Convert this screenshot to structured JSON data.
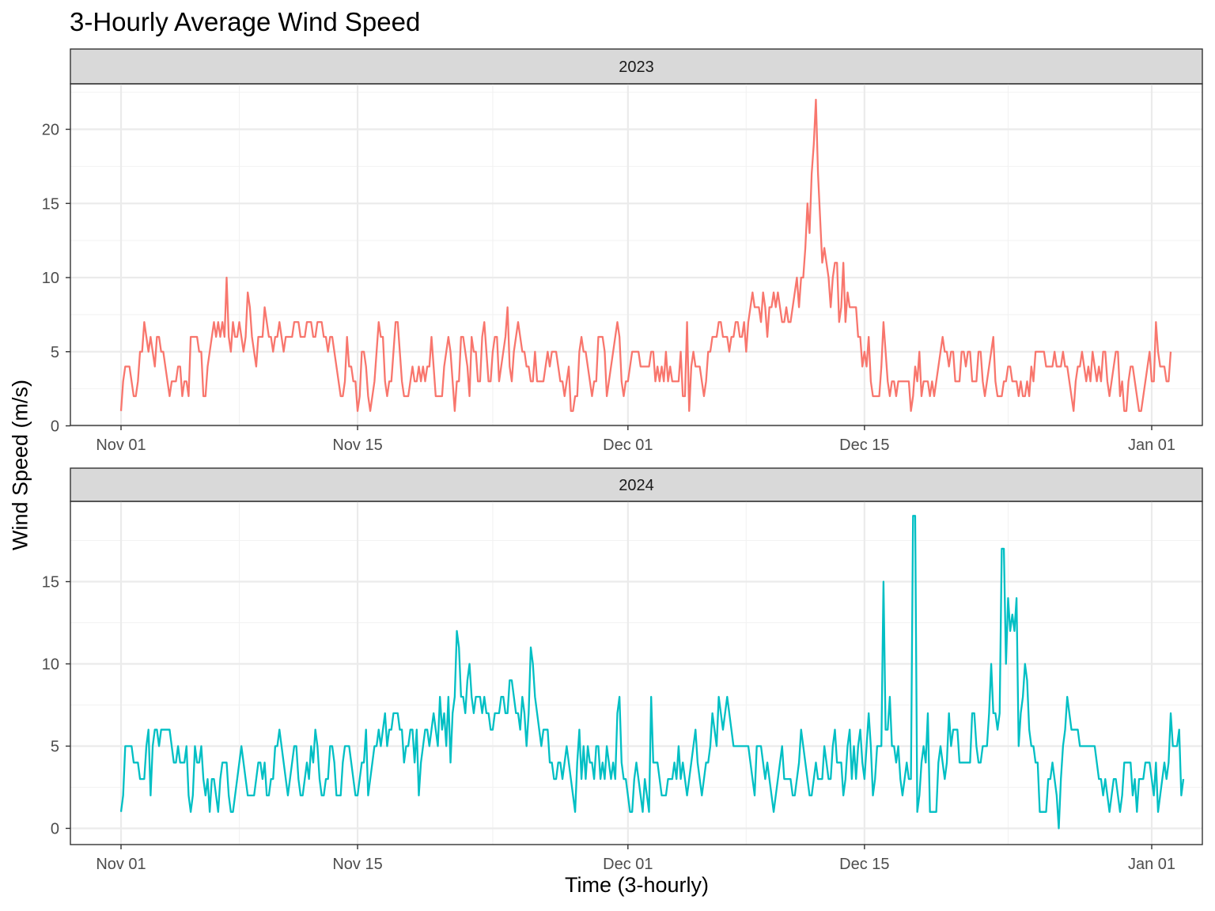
{
  "chart_data": {
    "type": "line",
    "title": "3-Hourly Average Wind Speed",
    "xlabel": "Time (3-hourly)",
    "ylabel": "Wind Speed (m/s)",
    "x_tick_labels": [
      "Nov 01",
      "Nov 15",
      "Dec 01",
      "Dec 15",
      "Jan 01"
    ],
    "x_tick_days": [
      0,
      14,
      30,
      44,
      61
    ],
    "grid": true,
    "legend": "none",
    "panels": [
      {
        "facet": "2023",
        "color": "#F8766D",
        "ylim": [
          0,
          23
        ],
        "y_ticks": [
          0,
          5,
          10,
          15,
          20
        ],
        "series": [
          {
            "x_start": "2023-11-01",
            "step_hours": 3,
            "values": [
              1,
              3,
              4,
              4,
              4,
              3,
              2,
              2,
              3,
              5,
              5,
              7,
              6,
              5,
              6,
              5,
              4,
              6,
              6,
              5,
              5,
              4,
              3,
              2,
              3,
              3,
              3,
              4,
              4,
              2,
              3,
              3,
              2,
              6,
              6,
              6,
              6,
              5,
              5,
              2,
              2,
              4,
              5,
              6,
              7,
              6,
              7,
              6,
              7,
              6,
              10,
              6,
              5,
              7,
              6,
              6,
              7,
              6,
              5,
              6,
              9,
              8,
              6,
              5,
              4,
              6,
              6,
              6,
              8,
              7,
              6,
              6,
              5,
              6,
              6,
              7,
              6,
              5,
              6,
              6,
              6,
              6,
              7,
              7,
              7,
              6,
              6,
              6,
              7,
              7,
              7,
              6,
              6,
              7,
              7,
              7,
              6,
              6,
              5,
              6,
              6,
              5,
              4,
              3,
              2,
              2,
              3,
              6,
              4,
              4,
              3,
              3,
              1,
              2,
              5,
              5,
              4,
              2,
              1,
              2,
              3,
              5,
              7,
              6,
              6,
              3,
              2,
              3,
              3,
              5,
              7,
              7,
              5,
              3,
              2,
              2,
              2,
              3,
              4,
              3,
              3,
              4,
              3,
              4,
              3,
              4,
              4,
              6,
              4,
              2,
              2,
              2,
              2,
              4,
              5,
              6,
              5,
              3,
              1,
              3,
              3,
              6,
              6,
              5,
              4,
              2,
              6,
              5,
              5,
              3,
              3,
              6,
              7,
              5,
              3,
              3,
              5,
              6,
              6,
              3,
              4,
              5,
              6,
              8,
              4,
              3,
              5,
              6,
              7,
              6,
              5,
              5,
              4,
              4,
              3,
              3,
              5,
              3,
              3,
              3,
              3,
              4,
              5,
              4,
              5,
              5,
              5,
              4,
              3,
              3,
              2,
              3,
              4,
              1,
              1,
              2,
              2,
              5,
              6,
              5,
              5,
              4,
              3,
              2,
              3,
              3,
              6,
              6,
              6,
              5,
              2,
              3,
              4,
              5,
              6,
              7,
              6,
              3,
              2,
              3,
              3,
              4,
              5,
              5,
              5,
              5,
              4,
              4,
              4,
              4,
              4,
              5,
              5,
              3,
              4,
              3,
              4,
              3,
              5,
              3,
              4,
              3,
              3,
              3,
              3,
              5,
              2,
              2,
              7,
              1,
              4,
              5,
              4,
              4,
              4,
              3,
              2,
              3,
              5,
              5,
              6,
              6,
              6,
              7,
              7,
              6,
              6,
              6,
              5,
              6,
              6,
              7,
              7,
              6,
              6,
              7,
              5,
              7,
              8,
              9,
              8,
              8,
              8,
              7,
              9,
              8,
              6,
              8,
              8,
              9,
              8,
              9,
              8,
              7,
              7,
              8,
              7,
              7,
              8,
              9,
              10,
              8,
              10,
              10,
              12,
              15,
              13,
              17,
              19,
              22,
              17,
              14,
              11,
              12,
              11,
              10,
              8,
              10,
              11,
              11,
              7,
              8,
              11,
              7,
              9,
              8,
              8,
              8,
              8,
              6,
              6,
              4,
              5,
              4,
              6,
              3,
              2,
              2,
              2,
              2,
              4,
              7,
              5,
              3,
              2,
              3,
              3,
              2,
              3,
              3,
              3,
              3,
              3,
              3,
              1,
              2,
              4,
              3,
              5,
              2,
              3,
              3,
              3,
              2,
              3,
              2,
              3,
              4,
              5,
              6,
              5,
              5,
              4,
              5,
              5,
              3,
              3,
              3,
              5,
              5,
              4,
              5,
              5,
              3,
              3,
              3,
              5,
              5,
              3,
              2,
              3,
              4,
              5,
              6,
              3,
              2,
              2,
              2,
              3,
              3,
              4,
              4,
              3,
              3,
              3,
              2,
              3,
              2,
              2,
              3,
              2,
              4,
              3,
              5,
              5,
              5,
              5,
              5,
              4,
              4,
              4,
              4,
              5,
              4,
              4,
              4,
              5,
              4,
              4,
              3,
              2,
              1,
              3,
              4,
              4,
              5,
              4,
              3,
              4,
              3,
              5,
              4,
              3,
              4,
              3,
              5,
              5,
              3,
              2,
              3,
              4,
              5,
              5,
              2,
              3,
              1,
              1,
              3,
              4,
              4,
              3,
              2,
              1,
              1,
              2,
              3,
              4,
              5,
              3,
              3,
              7,
              5,
              4,
              4,
              4,
              3,
              3,
              5
            ]
          }
        ]
      },
      {
        "facet": "2024",
        "color": "#00BFC4",
        "ylim": [
          -1.1,
          20.1
        ],
        "y_ticks": [
          0,
          5,
          10,
          15
        ],
        "series": [
          {
            "x_start": "2024-11-01",
            "step_hours": 3,
            "values": [
              1,
              2,
              5,
              5,
              5,
              5,
              4,
              4,
              4,
              3,
              3,
              3,
              5,
              6,
              2,
              5,
              6,
              6,
              5,
              6,
              6,
              6,
              6,
              6,
              5,
              4,
              4,
              5,
              4,
              4,
              4,
              5,
              2,
              1,
              2,
              5,
              4,
              4,
              5,
              3,
              2,
              3,
              1,
              3,
              3,
              2,
              1,
              3,
              4,
              4,
              4,
              2,
              1,
              1,
              2,
              3,
              4,
              5,
              4,
              3,
              2,
              2,
              2,
              2,
              3,
              4,
              4,
              3,
              4,
              2,
              2,
              3,
              3,
              5,
              5,
              6,
              5,
              4,
              3,
              2,
              3,
              4,
              5,
              5,
              3,
              2,
              2,
              3,
              4,
              3,
              5,
              4,
              6,
              5,
              3,
              2,
              2,
              3,
              3,
              5,
              5,
              4,
              2,
              2,
              2,
              4,
              5,
              5,
              5,
              4,
              3,
              2,
              2,
              3,
              4,
              4,
              6,
              2,
              3,
              4,
              5,
              5,
              6,
              5,
              6,
              7,
              5,
              6,
              6,
              7,
              7,
              7,
              6,
              6,
              4,
              5,
              5,
              6,
              6,
              4,
              6,
              2,
              4,
              5,
              6,
              6,
              5,
              6,
              7,
              6,
              5,
              8,
              6,
              7,
              5,
              8,
              4,
              7,
              8,
              12,
              11,
              8,
              8,
              7,
              9,
              10,
              8,
              7,
              8,
              8,
              8,
              7,
              8,
              7,
              7,
              6,
              6,
              7,
              7,
              7,
              8,
              8,
              7,
              7,
              9,
              9,
              8,
              7,
              7,
              6,
              8,
              7,
              5,
              7,
              11,
              10,
              8,
              7,
              6,
              5,
              6,
              6,
              6,
              4,
              4,
              3,
              3,
              4,
              4,
              3,
              4,
              5,
              4,
              3,
              2,
              1,
              4,
              6,
              3,
              5,
              3,
              5,
              4,
              4,
              3,
              5,
              5,
              3,
              4,
              3,
              5,
              4,
              3,
              4,
              3,
              7,
              8,
              4,
              3,
              3,
              2,
              1,
              1,
              3,
              4,
              3,
              2,
              1,
              3,
              2,
              1,
              8,
              4,
              4,
              4,
              3,
              2,
              2,
              2,
              3,
              3,
              3,
              4,
              3,
              5,
              3,
              4,
              3,
              2,
              3,
              4,
              5,
              6,
              4,
              3,
              2,
              3,
              4,
              4,
              5,
              7,
              6,
              5,
              8,
              7,
              6,
              7,
              8,
              7,
              6,
              5,
              5,
              5,
              5,
              5,
              5,
              5,
              5,
              4,
              3,
              2,
              5,
              5,
              5,
              4,
              3,
              4,
              3,
              2,
              1,
              2,
              3,
              4,
              5,
              3,
              3,
              3,
              3,
              2,
              2,
              3,
              4,
              6,
              5,
              4,
              3,
              2,
              2,
              3,
              4,
              3,
              3,
              3,
              5,
              4,
              3,
              3,
              5,
              6,
              4,
              4,
              4,
              2,
              3,
              5,
              6,
              3,
              5,
              3,
              5,
              6,
              4,
              3,
              5,
              7,
              5,
              2,
              3,
              5,
              5,
              5,
              15,
              6,
              6,
              8,
              5,
              5,
              4,
              5,
              3,
              2,
              3,
              4,
              3,
              3,
              19,
              19,
              1,
              2,
              4,
              5,
              4,
              7,
              1,
              1,
              1,
              1,
              4,
              5,
              4,
              3,
              4,
              7,
              5,
              6,
              6,
              6,
              4,
              4,
              4,
              4,
              4,
              4,
              7,
              7,
              5,
              4,
              4,
              5,
              5,
              5,
              7,
              10,
              7,
              7,
              6,
              7,
              17,
              17,
              10,
              14,
              12,
              13,
              12,
              14,
              5,
              7,
              8,
              10,
              9,
              6,
              5,
              5,
              4,
              4,
              1,
              1,
              1,
              1,
              3,
              3,
              4,
              3,
              2,
              0,
              3,
              5,
              6,
              8,
              7,
              6,
              6,
              6,
              6,
              5,
              5,
              5,
              5,
              5,
              5,
              5,
              5,
              4,
              3,
              3,
              2,
              3,
              2,
              1,
              2,
              3,
              3,
              2,
              1,
              2,
              4,
              4,
              4,
              4,
              2,
              3,
              1,
              3,
              3,
              3,
              4,
              4,
              4,
              3,
              2,
              4,
              1,
              2,
              3,
              4,
              3,
              4,
              7,
              5,
              5,
              5,
              6,
              2,
              3
            ]
          }
        ]
      }
    ]
  }
}
